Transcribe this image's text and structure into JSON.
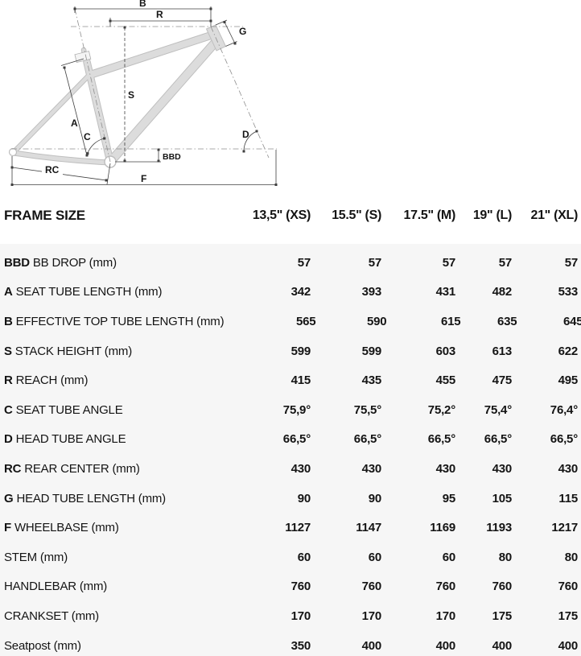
{
  "diagram": {
    "labels": {
      "b": "B",
      "r": "R",
      "g": "G",
      "s": "S",
      "a": "A",
      "c": "C",
      "d": "D",
      "bbd": "BBD",
      "rc": "RC",
      "f": "F"
    }
  },
  "table": {
    "title": "FRAME SIZE",
    "header": {
      "columns": [
        "13,5\" (XS)",
        "15.5\" (S)",
        "17.5\" (M)",
        "19\" (L)",
        "21\" (XL)"
      ]
    },
    "rows": [
      {
        "prefix": "BBD",
        "label": "BB DROP (mm)",
        "values": [
          "57",
          "57",
          "57",
          "57",
          "57"
        ]
      },
      {
        "prefix": "A",
        "label": "SEAT TUBE LENGTH (mm)",
        "values": [
          "342",
          "393",
          "431",
          "482",
          "533"
        ]
      },
      {
        "prefix": "B",
        "label": "EFFECTIVE TOP TUBE LENGTH (mm)",
        "values": [
          "565",
          "590",
          "615",
          "635",
          "645"
        ]
      },
      {
        "prefix": "S",
        "label": "STACK HEIGHT (mm)",
        "values": [
          "599",
          "599",
          "603",
          "613",
          "622"
        ]
      },
      {
        "prefix": "R",
        "label": "REACH (mm)",
        "values": [
          "415",
          "435",
          "455",
          "475",
          "495"
        ]
      },
      {
        "prefix": "C",
        "label": "SEAT TUBE ANGLE",
        "values": [
          "75,9°",
          "75,5°",
          "75,2°",
          "75,4°",
          "76,4°"
        ]
      },
      {
        "prefix": "D",
        "label": "HEAD TUBE ANGLE",
        "values": [
          "66,5°",
          "66,5°",
          "66,5°",
          "66,5°",
          "66,5°"
        ]
      },
      {
        "prefix": "RC",
        "label": "REAR CENTER (mm)",
        "values": [
          "430",
          "430",
          "430",
          "430",
          "430"
        ]
      },
      {
        "prefix": "G",
        "label": "HEAD TUBE LENGTH (mm)",
        "values": [
          "90",
          "90",
          "95",
          "105",
          "115"
        ]
      },
      {
        "prefix": "F",
        "label": "WHEELBASE (mm)",
        "values": [
          "1127",
          "1147",
          "1169",
          "1193",
          "1217"
        ]
      },
      {
        "prefix": "",
        "label": "STEM (mm)",
        "values": [
          "60",
          "60",
          "60",
          "80",
          "80"
        ]
      },
      {
        "prefix": "",
        "label": "HANDLEBAR (mm)",
        "values": [
          "760",
          "760",
          "760",
          "760",
          "760"
        ]
      },
      {
        "prefix": "",
        "label": "CRANKSET (mm)",
        "values": [
          "170",
          "170",
          "170",
          "175",
          "175"
        ]
      },
      {
        "prefix": "",
        "label": "Seatpost (mm)",
        "values": [
          "350",
          "400",
          "400",
          "400",
          "400"
        ]
      }
    ]
  },
  "colors": {
    "panel_bg": "#f6f6f6",
    "text": "#141414",
    "frame_fill": "#dcdcdc",
    "frame_edge": "#bfbfbf",
    "dim_line": "#3f3f3f",
    "construction_line": "#8f8f8f"
  }
}
